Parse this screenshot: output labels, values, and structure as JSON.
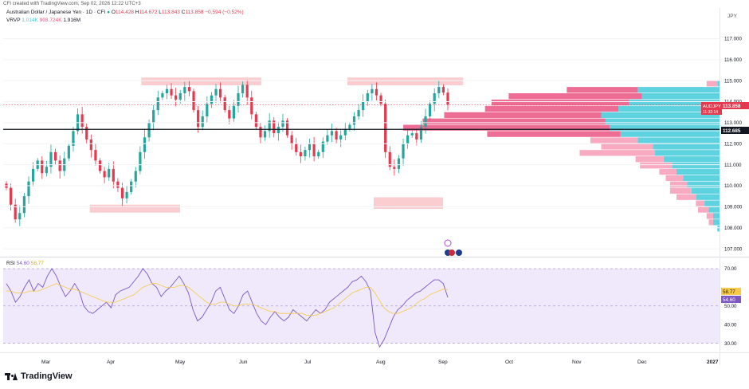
{
  "header": {
    "text": "CFI created with TradingView.com, Sep 02, 2026 12:22 UTC+3"
  },
  "legend": {
    "symbol": "Australian Dollar / Japanese Yen · 1D · CFI",
    "open_label": "O",
    "open": "114.428",
    "high_label": "H",
    "high": "114.672",
    "low_label": "L",
    "low": "113.843",
    "close_label": "C",
    "close": "113.858",
    "change": "−0.594 (−0.52%)",
    "vrvp_label": "VRVP",
    "vrvp_1": "1.014K",
    "vrvp_2": "903.724K",
    "vrvp_3": "1.916M"
  },
  "rsi_legend": {
    "label": "RSI",
    "value": "54.60",
    "ma": "58.77"
  },
  "branding": {
    "name": "TradingView"
  },
  "colors": {
    "up": "#26a69a",
    "down": "#e5394f",
    "zone": "#f8bcc0",
    "vp_blue": "#5fd2e0",
    "vp_pink": "#ee6d94",
    "vp_light": "#f8aac0",
    "rsi_line": "#7e57c2",
    "rsi_ma": "#f7c948",
    "rsi_band": "#efe9fb"
  },
  "chart_data": [
    {
      "type": "candlestick",
      "title": "Australian Dollar / Japanese Yen",
      "y_axis_currency": "JPY",
      "price_ticks": [
        "117.000",
        "116.000",
        "115.000",
        "114.000",
        "113.000",
        "112.000",
        "111.000",
        "110.000",
        "109.000",
        "108.000",
        "107.000"
      ],
      "ylim": [
        106.7,
        117.7
      ],
      "x_ticks": [
        "Mar",
        "Apr",
        "May",
        "Jun",
        "Jul",
        "Aug",
        "Sep",
        "Oct",
        "Nov",
        "Dec",
        "2027"
      ],
      "last_price": {
        "label": "AUDJPY",
        "value": "113.858",
        "countdown": "11:32:14"
      },
      "horizontal_line": {
        "value": "112.685",
        "level": 112.685
      },
      "zones": [
        {
          "from": "Apr 14",
          "to": "Jun 9",
          "y_low": 114.78,
          "y_high": 115.15
        },
        {
          "from": "Jul 17",
          "to": "Sep 10",
          "y_low": 114.78,
          "y_high": 115.15
        },
        {
          "from": "Mar 21",
          "to": "May 1",
          "y_low": 108.72,
          "y_high": 109.1
        },
        {
          "from": "Jul 28",
          "to": "Sep 1",
          "y_low": 108.9,
          "y_high": 109.45
        }
      ],
      "path_points": [
        [
          0,
          109.9
        ],
        [
          1,
          109.1
        ],
        [
          2,
          108.4
        ],
        [
          3,
          108.7
        ],
        [
          4,
          109.5
        ],
        [
          5,
          110.2
        ],
        [
          6,
          110.8
        ],
        [
          7,
          111.2
        ],
        [
          8,
          110.6
        ],
        [
          9,
          110.9
        ],
        [
          10,
          111.6
        ],
        [
          11,
          111.2
        ],
        [
          12,
          110.7
        ],
        [
          13,
          111.3
        ],
        [
          14,
          111.9
        ],
        [
          15,
          112.6
        ],
        [
          16,
          113.4
        ],
        [
          17,
          112.8
        ],
        [
          18,
          112.2
        ],
        [
          19,
          111.7
        ],
        [
          20,
          111.2
        ],
        [
          21,
          110.7
        ],
        [
          22,
          110.4
        ],
        [
          23,
          110.8
        ],
        [
          24,
          110.2
        ],
        [
          25,
          109.9
        ],
        [
          26,
          109.4
        ],
        [
          27,
          109.7
        ],
        [
          28,
          110.2
        ],
        [
          29,
          110.7
        ],
        [
          30,
          111.6
        ],
        [
          31,
          112.3
        ],
        [
          32,
          113.0
        ],
        [
          33,
          113.6
        ],
        [
          34,
          114.2
        ],
        [
          35,
          114.4
        ],
        [
          36,
          114.6
        ],
        [
          37,
          114.3
        ],
        [
          38,
          114.1
        ],
        [
          39,
          114.4
        ],
        [
          40,
          114.7
        ],
        [
          41,
          114.5
        ],
        [
          42,
          113.6
        ],
        [
          43,
          112.8
        ],
        [
          44,
          113.3
        ],
        [
          45,
          113.9
        ],
        [
          46,
          114.3
        ],
        [
          47,
          114.6
        ],
        [
          48,
          114.2
        ],
        [
          49,
          113.6
        ],
        [
          50,
          113.2
        ],
        [
          51,
          113.8
        ],
        [
          52,
          114.4
        ],
        [
          53,
          114.8
        ],
        [
          54,
          114.2
        ],
        [
          55,
          113.4
        ],
        [
          56,
          112.8
        ],
        [
          57,
          112.3
        ],
        [
          58,
          112.6
        ],
        [
          59,
          113.1
        ],
        [
          60,
          112.5
        ],
        [
          61,
          112.8
        ],
        [
          62,
          113.1
        ],
        [
          63,
          112.4
        ],
        [
          64,
          112.0
        ],
        [
          65,
          111.6
        ],
        [
          66,
          111.4
        ],
        [
          67,
          111.7
        ],
        [
          68,
          112.0
        ],
        [
          69,
          111.4
        ],
        [
          70,
          111.6
        ],
        [
          71,
          112.1
        ],
        [
          72,
          112.4
        ],
        [
          73,
          112.6
        ],
        [
          74,
          112.2
        ],
        [
          75,
          112.4
        ],
        [
          76,
          112.7
        ],
        [
          77,
          112.9
        ],
        [
          78,
          113.3
        ],
        [
          79,
          113.6
        ],
        [
          80,
          114.0
        ],
        [
          81,
          114.4
        ],
        [
          82,
          114.6
        ],
        [
          83,
          114.3
        ],
        [
          84,
          113.9
        ],
        [
          85,
          111.6
        ],
        [
          86,
          110.9
        ],
        [
          87,
          110.8
        ],
        [
          88,
          111.3
        ],
        [
          89,
          112.0
        ],
        [
          90,
          112.4
        ],
        [
          91,
          112.5
        ],
        [
          92,
          112.2
        ],
        [
          93,
          112.8
        ],
        [
          94,
          113.3
        ],
        [
          95,
          113.9
        ],
        [
          96,
          114.4
        ],
        [
          97,
          114.7
        ],
        [
          98,
          114.43
        ],
        [
          99,
          113.86
        ]
      ],
      "x_domain_bars": 170,
      "volume_profile": {
        "levels": [
          {
            "price": 114.85,
            "buy": 0.01,
            "sell": 0.05
          },
          {
            "price": 114.55,
            "buy": 0.38,
            "sell": 0.33
          },
          {
            "price": 114.25,
            "buy": 0.36,
            "sell": 0.62
          },
          {
            "price": 113.95,
            "buy": 0.42,
            "sell": 0.64
          },
          {
            "price": 113.65,
            "buy": 0.47,
            "sell": 0.62
          },
          {
            "price": 113.35,
            "buy": 0.55,
            "sell": 0.73
          },
          {
            "price": 113.05,
            "buy": 0.53,
            "sell": 0.85
          },
          {
            "price": 112.75,
            "buy": 0.51,
            "sell": 0.96
          },
          {
            "price": 112.45,
            "buy": 0.46,
            "sell": 0.62
          },
          {
            "price": 112.15,
            "buy": 0.38,
            "sell": 0.22
          },
          {
            "price": 111.85,
            "buy": 0.31,
            "sell": 0.24
          },
          {
            "price": 111.55,
            "buy": 0.3,
            "sell": 0.35
          },
          {
            "price": 111.25,
            "buy": 0.26,
            "sell": 0.13
          },
          {
            "price": 110.95,
            "buy": 0.22,
            "sell": 0.15
          },
          {
            "price": 110.65,
            "buy": 0.2,
            "sell": 0.08
          },
          {
            "price": 110.35,
            "buy": 0.17,
            "sell": 0.08
          },
          {
            "price": 110.05,
            "buy": 0.15,
            "sell": 0.08
          },
          {
            "price": 109.75,
            "buy": 0.13,
            "sell": 0.1
          },
          {
            "price": 109.45,
            "buy": 0.11,
            "sell": 0.09
          },
          {
            "price": 109.15,
            "buy": 0.07,
            "sell": 0.04
          },
          {
            "price": 108.85,
            "buy": 0.05,
            "sell": 0.05
          },
          {
            "price": 108.55,
            "buy": 0.03,
            "sell": 0.03
          },
          {
            "price": 108.25,
            "buy": 0.03,
            "sell": 0.02
          },
          {
            "price": 107.95,
            "buy": 0.01,
            "sell": 0.0
          }
        ]
      }
    },
    {
      "type": "line",
      "title": "RSI",
      "ticks": [
        "70.00",
        "50.00",
        "40.00",
        "30.00"
      ],
      "ylim": [
        26,
        73
      ],
      "band": [
        30,
        70
      ],
      "mid": 50,
      "series": [
        {
          "name": "RSI",
          "values": [
            62,
            58,
            52,
            55,
            60,
            64,
            58,
            62,
            60,
            66,
            70,
            66,
            60,
            55,
            58,
            62,
            58,
            50,
            47,
            46,
            48,
            50,
            52,
            49,
            56,
            58,
            59,
            60,
            63,
            66,
            70,
            67,
            62,
            60,
            55,
            58,
            60,
            63,
            66,
            62,
            57,
            48,
            42,
            44,
            48,
            52,
            58,
            60,
            54,
            48,
            46,
            50,
            56,
            58,
            52,
            46,
            42,
            40,
            44,
            47,
            44,
            42,
            44,
            48,
            46,
            44,
            42,
            45,
            48,
            46,
            48,
            52,
            54,
            56,
            58,
            60,
            63,
            64,
            66,
            63,
            58,
            36,
            28,
            32,
            38,
            44,
            48,
            50,
            53,
            55,
            57,
            58,
            60,
            62,
            64,
            64,
            62,
            54.6
          ]
        },
        {
          "name": "MA",
          "values": [
            58,
            58,
            57,
            57,
            57,
            58,
            58,
            58,
            59,
            60,
            61,
            62,
            61,
            60,
            59,
            59,
            58,
            57,
            56,
            55,
            54,
            53,
            52,
            52,
            52,
            53,
            54,
            55,
            56,
            58,
            60,
            61,
            62,
            62,
            61,
            60,
            60,
            60,
            61,
            61,
            60,
            58,
            56,
            54,
            52,
            51,
            51,
            52,
            52,
            51,
            50,
            50,
            51,
            51,
            51,
            50,
            49,
            48,
            47,
            47,
            46,
            46,
            46,
            46,
            46,
            46,
            45,
            45,
            45,
            46,
            47,
            48,
            49,
            51,
            53,
            55,
            57,
            58,
            59,
            60,
            60,
            57,
            53,
            49,
            47,
            46,
            46,
            47,
            48,
            49,
            51,
            53,
            54,
            56,
            57,
            58,
            59,
            58.77
          ]
        }
      ]
    }
  ]
}
